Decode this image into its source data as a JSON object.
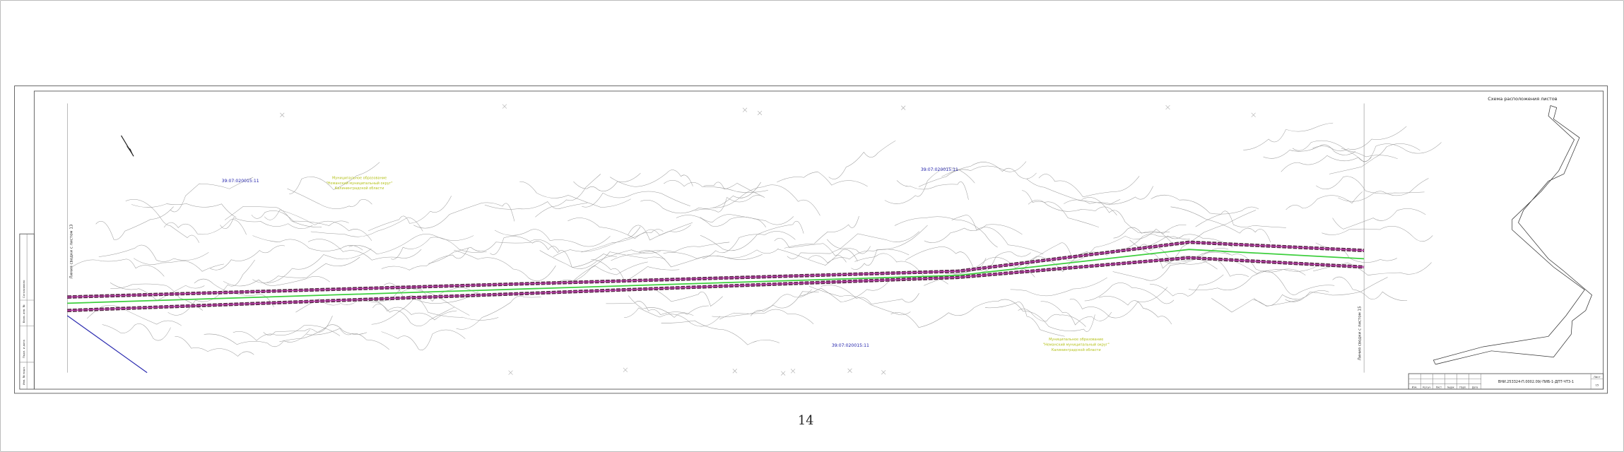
{
  "map": {
    "parcels": [
      "39:07:020015:11",
      "39:07:020015:11",
      "39:07:020015:11"
    ],
    "municipality": [
      [
        "Муниципальное образование",
        "\"Неманский муниципальный округ\"",
        "Калининградской области"
      ],
      [
        "Муниципальное образование",
        "\"Неманский муниципальный округ\"",
        "Калининградской области"
      ]
    ],
    "match_lines": [
      "Линия сводки с листом 13",
      "Линия сводки с листом 15"
    ]
  },
  "sheet_layout": {
    "title": "Схема расположения листов"
  },
  "title_block": {
    "code": "ВНИ.253324-П.0002.09/-ПИБ-1-ДПТ-ЧТ3-1",
    "sheet_label": "Лист",
    "sheet": "15",
    "columns": [
      "Изм.",
      "Кол.уч",
      "Лист",
      "№док",
      "Подп.",
      "Дата"
    ]
  },
  "margin_stamps": [
    "Инв. № подл.",
    "Подп. и дата",
    "Взам. инв. №",
    "Согласовано"
  ],
  "page_number": "14"
}
